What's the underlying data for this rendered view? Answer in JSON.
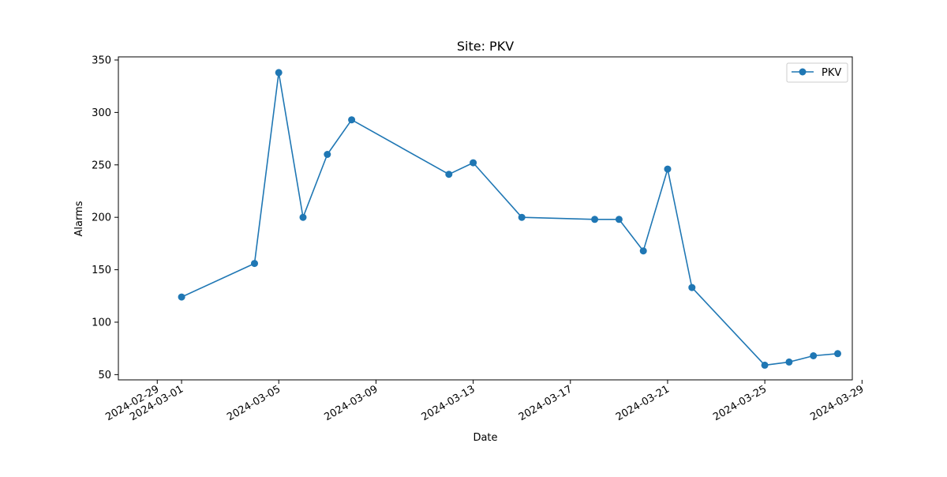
{
  "chart_data": {
    "type": "line",
    "title": "Site: PKV",
    "xlabel": "Date",
    "ylabel": "Alarms",
    "x_tick_labels": [
      "2024-02-29",
      "2024-03-01",
      "2024-03-05",
      "2024-03-09",
      "2024-03-13",
      "2024-03-17",
      "2024-03-21",
      "2024-03-25",
      "2024-03-29"
    ],
    "y_tick_labels": [
      "50",
      "100",
      "150",
      "200",
      "250",
      "300",
      "350"
    ],
    "xlim": [
      "2024-02-28",
      "2024-03-28"
    ],
    "ylim": [
      45,
      353
    ],
    "grid": false,
    "legend_position": "top-right",
    "series": [
      {
        "name": "PKV",
        "color": "#1f77b4",
        "marker": "circle",
        "points": [
          {
            "x": "2024-03-01",
            "y": 124
          },
          {
            "x": "2024-03-04",
            "y": 156
          },
          {
            "x": "2024-03-05",
            "y": 338
          },
          {
            "x": "2024-03-06",
            "y": 200
          },
          {
            "x": "2024-03-07",
            "y": 260
          },
          {
            "x": "2024-03-08",
            "y": 293
          },
          {
            "x": "2024-03-12",
            "y": 241
          },
          {
            "x": "2024-03-13",
            "y": 252
          },
          {
            "x": "2024-03-15",
            "y": 200
          },
          {
            "x": "2024-03-18",
            "y": 198
          },
          {
            "x": "2024-03-19",
            "y": 198
          },
          {
            "x": "2024-03-20",
            "y": 168
          },
          {
            "x": "2024-03-21",
            "y": 246
          },
          {
            "x": "2024-03-22",
            "y": 133
          },
          {
            "x": "2024-03-25",
            "y": 59
          },
          {
            "x": "2024-03-26",
            "y": 62
          },
          {
            "x": "2024-03-27",
            "y": 68
          },
          {
            "x": "2024-03-28",
            "y": 70
          }
        ]
      }
    ]
  }
}
